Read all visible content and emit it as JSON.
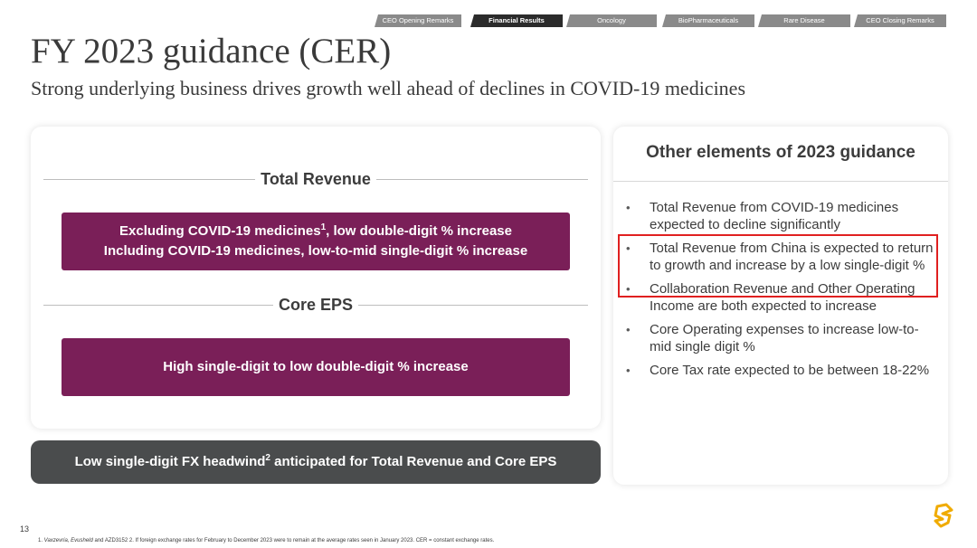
{
  "nav": {
    "tabs": [
      {
        "label": "CEO Opening Remarks",
        "active": false
      },
      {
        "label": "Financial Results",
        "active": true
      },
      {
        "label": "Oncology",
        "active": false
      },
      {
        "label": "BioPharmaceuticals",
        "active": false
      },
      {
        "label": "Rare Disease",
        "active": false
      },
      {
        "label": "CEO Closing Remarks",
        "active": false
      }
    ]
  },
  "title": "FY 2023 guidance (CER)",
  "subtitle": "Strong underlying business drives growth well ahead of declines in COVID-19 medicines",
  "left": {
    "revenue_heading": "Total Revenue",
    "revenue_line1_a": "Excluding COVID-19 medicines",
    "revenue_line1_sup": "1",
    "revenue_line1_b": ", low double-digit % increase",
    "revenue_line2": "Including COVID-19 medicines, low-to-mid single-digit % increase",
    "eps_heading": "Core EPS",
    "eps_text": "High single-digit to low double-digit % increase"
  },
  "fx": {
    "text_a": "Low single-digit FX headwind",
    "sup": "2",
    "text_b": " anticipated for Total Revenue and Core EPS"
  },
  "right": {
    "title": "Other elements of 2023 guidance",
    "bullets": [
      "Total Revenue from COVID-19 medicines expected to decline significantly",
      "Total Revenue from China is expected to return to growth and increase by a low single-digit %",
      "Collaboration Revenue and Other Operating Income are both expected to increase",
      "Core Operating expenses to increase low-to-mid single digit %",
      "Core Tax rate expected to be between 18-22%"
    ]
  },
  "footer": {
    "page_number": "13",
    "fn_vaxzevria": "Vaxzevria",
    "fn_sep1": ", ",
    "fn_evusheld": "Evusheld",
    "fn_rest": " and AZD3152 2. If foreign exchange rates for February to December 2023 were to remain at the average rates seen in January 2023. CER = constant exchange rates.",
    "fn_prefix": "1. "
  },
  "colors": {
    "brand_plum": "#7a1f58",
    "fx_bar": "#4a4c4d",
    "highlight_red": "#e02020",
    "logo_gold": "#f0ab00"
  }
}
